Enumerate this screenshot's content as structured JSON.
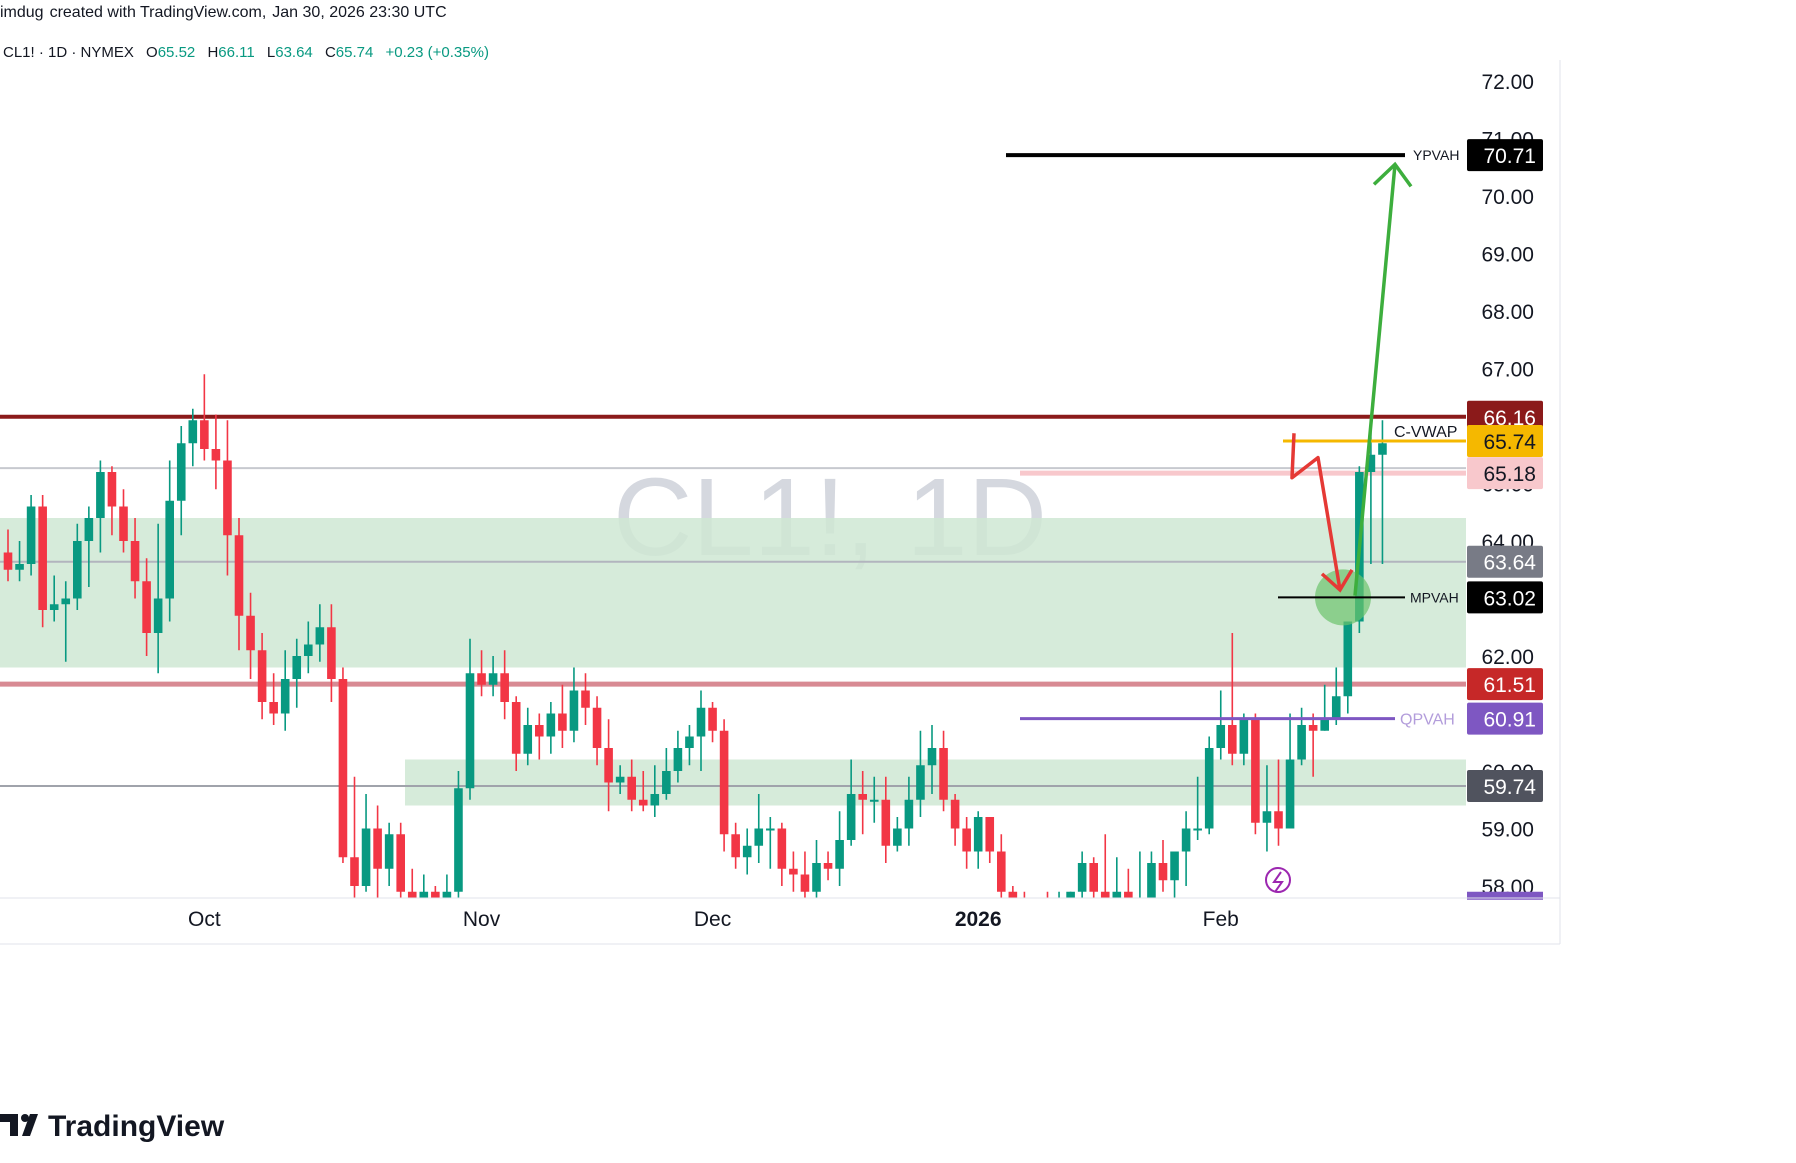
{
  "header": {
    "author": "imdug",
    "created_with": "created with TradingView.com,",
    "timestamp": "Jan 30, 2026 23:30 UTC"
  },
  "legend": {
    "symbol": "CL1! · 1D · NYMEX",
    "open_label": "O",
    "open": "65.52",
    "high_label": "H",
    "high": "66.11",
    "low_label": "L",
    "low": "63.64",
    "close_label": "C",
    "close": "65.74",
    "change": "+0.23",
    "change_pct": "(+0.35%)"
  },
  "watermark": "CL1!, 1D",
  "brand": {
    "name": "TradingView",
    "logo_icon": "tradingview-logo-icon"
  },
  "colors": {
    "up": "#089981",
    "down": "#f23645",
    "zone": "#cfe8d3",
    "resistance": "#8b1a1a",
    "pink_line": "#d88a93",
    "qpvah": "#7e57c2",
    "vwap": "#f5b800",
    "arrow_up": "#3dae3d",
    "arrow_down": "#e53935"
  },
  "chart_data": {
    "type": "candlestick",
    "symbol": "CL1!",
    "interval": "1D",
    "exchange": "NYMEX",
    "ylim": [
      57.8,
      72.6
    ],
    "y_ticks": [
      "72.00",
      "71.00",
      "70.00",
      "69.00",
      "68.00",
      "67.00",
      "66.00",
      "65.00",
      "64.00",
      "63.00",
      "62.00",
      "61.00",
      "60.00",
      "59.00",
      "58.00"
    ],
    "x_ticks": [
      {
        "label": "Oct",
        "index": 17
      },
      {
        "label": "Nov",
        "index": 41
      },
      {
        "label": "Dec",
        "index": 61
      },
      {
        "label": "2026",
        "index": 84
      },
      {
        "label": "Feb",
        "index": 105
      }
    ],
    "candles": [
      [
        63.8,
        63.5,
        64.2,
        63.3
      ],
      [
        63.5,
        63.6,
        64.0,
        63.3
      ],
      [
        63.6,
        64.6,
        64.8,
        63.4
      ],
      [
        64.6,
        62.8,
        64.8,
        62.5
      ],
      [
        62.8,
        62.9,
        63.4,
        62.6
      ],
      [
        62.9,
        63.0,
        63.3,
        61.9
      ],
      [
        63.0,
        64.0,
        64.3,
        62.8
      ],
      [
        64.0,
        64.4,
        64.6,
        63.2
      ],
      [
        64.4,
        65.2,
        65.4,
        63.8
      ],
      [
        65.2,
        64.6,
        65.3,
        64.1
      ],
      [
        64.6,
        64.0,
        64.9,
        63.8
      ],
      [
        64.0,
        63.3,
        64.4,
        63.0
      ],
      [
        63.3,
        62.4,
        63.7,
        62.0
      ],
      [
        62.4,
        63.0,
        64.3,
        61.7
      ],
      [
        63.0,
        64.7,
        65.4,
        62.6
      ],
      [
        64.7,
        65.7,
        66.0,
        64.1
      ],
      [
        65.7,
        66.1,
        66.3,
        65.3
      ],
      [
        66.1,
        65.6,
        66.9,
        65.4
      ],
      [
        65.6,
        65.4,
        66.2,
        64.9
      ],
      [
        65.4,
        64.1,
        66.1,
        63.4
      ],
      [
        64.1,
        62.7,
        64.4,
        62.1
      ],
      [
        62.7,
        62.1,
        63.1,
        61.6
      ],
      [
        62.1,
        61.2,
        62.4,
        60.9
      ],
      [
        61.2,
        61.0,
        61.7,
        60.8
      ],
      [
        61.0,
        61.6,
        62.1,
        60.7
      ],
      [
        61.6,
        62.0,
        62.3,
        61.1
      ],
      [
        62.0,
        62.2,
        62.6,
        61.7
      ],
      [
        62.2,
        62.5,
        62.9,
        61.9
      ],
      [
        62.5,
        61.6,
        62.9,
        61.2
      ],
      [
        61.6,
        58.5,
        61.8,
        58.4
      ],
      [
        58.5,
        58.0,
        59.9,
        57.8
      ],
      [
        58.0,
        59.0,
        59.6,
        57.9
      ],
      [
        59.0,
        58.3,
        59.4,
        57.7
      ],
      [
        58.3,
        58.9,
        59.1,
        58.0
      ],
      [
        58.9,
        57.9,
        59.1,
        57.6
      ],
      [
        57.9,
        57.6,
        58.3,
        57.4
      ],
      [
        57.6,
        57.9,
        58.2,
        57.3
      ],
      [
        57.9,
        57.4,
        58.0,
        57.1
      ],
      [
        57.4,
        57.9,
        58.2,
        57.2
      ],
      [
        57.9,
        59.7,
        60.0,
        57.8
      ],
      [
        59.7,
        61.7,
        62.3,
        59.5
      ],
      [
        61.7,
        61.5,
        62.1,
        61.3
      ],
      [
        61.5,
        61.7,
        62.0,
        61.3
      ],
      [
        61.7,
        61.2,
        62.1,
        60.9
      ],
      [
        61.2,
        60.3,
        61.3,
        60.0
      ],
      [
        60.3,
        60.8,
        61.1,
        60.1
      ],
      [
        60.8,
        60.6,
        61.0,
        60.2
      ],
      [
        60.6,
        61.0,
        61.2,
        60.3
      ],
      [
        61.0,
        60.7,
        61.5,
        60.4
      ],
      [
        60.7,
        61.4,
        61.8,
        60.5
      ],
      [
        61.4,
        61.1,
        61.7,
        60.8
      ],
      [
        61.1,
        60.4,
        61.3,
        60.1
      ],
      [
        60.4,
        59.8,
        60.9,
        59.3
      ],
      [
        59.8,
        59.9,
        60.1,
        59.6
      ],
      [
        59.9,
        59.5,
        60.2,
        59.3
      ],
      [
        59.5,
        59.4,
        60.0,
        59.3
      ],
      [
        59.4,
        59.6,
        60.1,
        59.2
      ],
      [
        59.6,
        60.0,
        60.4,
        59.5
      ],
      [
        60.0,
        60.4,
        60.7,
        59.8
      ],
      [
        60.4,
        60.6,
        60.8,
        60.1
      ],
      [
        60.6,
        61.1,
        61.4,
        60.0
      ],
      [
        61.1,
        60.7,
        61.2,
        60.5
      ],
      [
        60.7,
        58.9,
        60.9,
        58.6
      ],
      [
        58.9,
        58.5,
        59.1,
        58.3
      ],
      [
        58.5,
        58.7,
        59.0,
        58.2
      ],
      [
        58.7,
        59.0,
        59.6,
        58.4
      ],
      [
        59.0,
        59.0,
        59.2,
        58.3
      ],
      [
        59.0,
        58.3,
        59.1,
        58.0
      ],
      [
        58.3,
        58.2,
        58.6,
        57.9
      ],
      [
        58.2,
        57.9,
        58.6,
        57.6
      ],
      [
        57.9,
        58.4,
        58.8,
        57.8
      ],
      [
        58.4,
        58.3,
        58.6,
        58.1
      ],
      [
        58.3,
        58.8,
        59.3,
        58.0
      ],
      [
        58.8,
        59.6,
        60.2,
        58.7
      ],
      [
        59.6,
        59.5,
        60.0,
        58.9
      ],
      [
        59.5,
        59.5,
        59.9,
        59.1
      ],
      [
        59.5,
        58.7,
        59.9,
        58.4
      ],
      [
        58.7,
        59.0,
        59.2,
        58.6
      ],
      [
        59.0,
        59.5,
        59.9,
        58.7
      ],
      [
        59.5,
        60.1,
        60.7,
        59.2
      ],
      [
        60.1,
        60.4,
        60.8,
        59.6
      ],
      [
        60.4,
        59.5,
        60.7,
        59.3
      ],
      [
        59.5,
        59.0,
        59.6,
        58.7
      ],
      [
        59.0,
        58.6,
        59.2,
        58.3
      ],
      [
        58.6,
        59.2,
        59.3,
        58.3
      ],
      [
        59.2,
        58.6,
        59.2,
        58.4
      ],
      [
        58.6,
        57.9,
        58.9,
        57.7
      ],
      [
        57.9,
        57.8,
        58.0,
        57.6
      ],
      [
        57.8,
        57.6,
        57.9,
        57.4
      ],
      [
        57.6,
        57.6,
        57.8,
        57.4
      ],
      [
        57.6,
        57.4,
        57.9,
        57.3
      ],
      [
        57.4,
        57.7,
        57.9,
        57.2
      ],
      [
        57.7,
        57.9,
        57.9,
        57.5
      ],
      [
        57.9,
        58.4,
        58.6,
        57.7
      ],
      [
        58.4,
        57.9,
        58.5,
        57.6
      ],
      [
        57.9,
        57.8,
        58.9,
        57.5
      ],
      [
        57.8,
        57.9,
        58.5,
        57.6
      ],
      [
        57.9,
        57.4,
        58.3,
        57.3
      ],
      [
        57.4,
        57.6,
        58.6,
        57.3
      ],
      [
        57.6,
        58.4,
        58.6,
        57.5
      ],
      [
        58.4,
        58.1,
        58.8,
        57.9
      ],
      [
        58.1,
        58.6,
        58.6,
        57.8
      ],
      [
        58.6,
        59.0,
        59.3,
        58.0
      ],
      [
        59.0,
        59.0,
        59.9,
        58.8
      ],
      [
        59.0,
        60.4,
        60.6,
        58.9
      ],
      [
        60.4,
        60.8,
        61.4,
        60.2
      ],
      [
        60.8,
        60.3,
        62.4,
        60.1
      ],
      [
        60.3,
        60.9,
        61.0,
        60.1
      ],
      [
        60.9,
        59.1,
        61.0,
        58.9
      ],
      [
        59.1,
        59.3,
        60.1,
        58.6
      ],
      [
        59.3,
        59.0,
        60.2,
        58.7
      ],
      [
        59.0,
        60.2,
        61.0,
        59.0
      ],
      [
        60.2,
        60.8,
        61.1,
        60.1
      ],
      [
        60.8,
        60.7,
        61.0,
        59.9
      ],
      [
        60.7,
        60.9,
        61.5,
        60.7
      ],
      [
        60.9,
        61.3,
        61.8,
        60.8
      ],
      [
        61.3,
        62.6,
        62.6,
        61.0
      ],
      [
        62.6,
        65.2,
        65.3,
        62.4
      ],
      [
        65.2,
        65.5,
        66.1,
        63.6
      ],
      [
        65.5,
        65.7,
        66.1,
        63.6
      ]
    ],
    "levels": [
      {
        "label": "YPVAH",
        "price": 70.71,
        "value_label": "70.71"
      },
      {
        "label": "C-VWAP",
        "price": 65.74,
        "value_label": "65.74"
      },
      {
        "label": "MPVAH",
        "price": 63.02,
        "value_label": "63.02"
      },
      {
        "label": "QPVAH",
        "price": 60.91,
        "value_label": "60.91"
      }
    ],
    "price_tags": [
      {
        "price": 66.16,
        "text": "66.16",
        "color": "#8b1a1a",
        "fg": "#ffffff"
      },
      {
        "price": 65.74,
        "text": "65.74",
        "color": "#f5b800",
        "fg": "#131722"
      },
      {
        "price": 65.18,
        "text": "65.18",
        "color": "#f8c8cc",
        "fg": "#131722"
      },
      {
        "price": 63.64,
        "text": "63.64",
        "color": "#787b86",
        "fg": "#ffffff"
      },
      {
        "price": 63.02,
        "text": "63.02",
        "color": "#000000",
        "fg": "#ffffff"
      },
      {
        "price": 61.51,
        "text": "61.51",
        "color": "#c62828",
        "fg": "#ffffff"
      },
      {
        "price": 60.91,
        "text": "60.91",
        "color": "#7e57c2",
        "fg": "#ffffff"
      },
      {
        "price": 59.74,
        "text": "59.74",
        "color": "#50535e",
        "fg": "#ffffff"
      },
      {
        "price": 70.71,
        "text": "70.71",
        "color": "#000000",
        "fg": "#ffffff"
      }
    ],
    "zones": [
      {
        "from": 61.8,
        "to": 64.4
      },
      {
        "from": 59.4,
        "to": 60.2
      }
    ],
    "projection": {
      "down": [
        [
          105,
          65.18
        ],
        [
          106,
          65.1
        ],
        [
          108,
          65.3
        ],
        [
          112,
          63.0
        ]
      ],
      "up": [
        [
          112,
          63.0
        ],
        [
          116,
          70.71
        ]
      ]
    }
  }
}
